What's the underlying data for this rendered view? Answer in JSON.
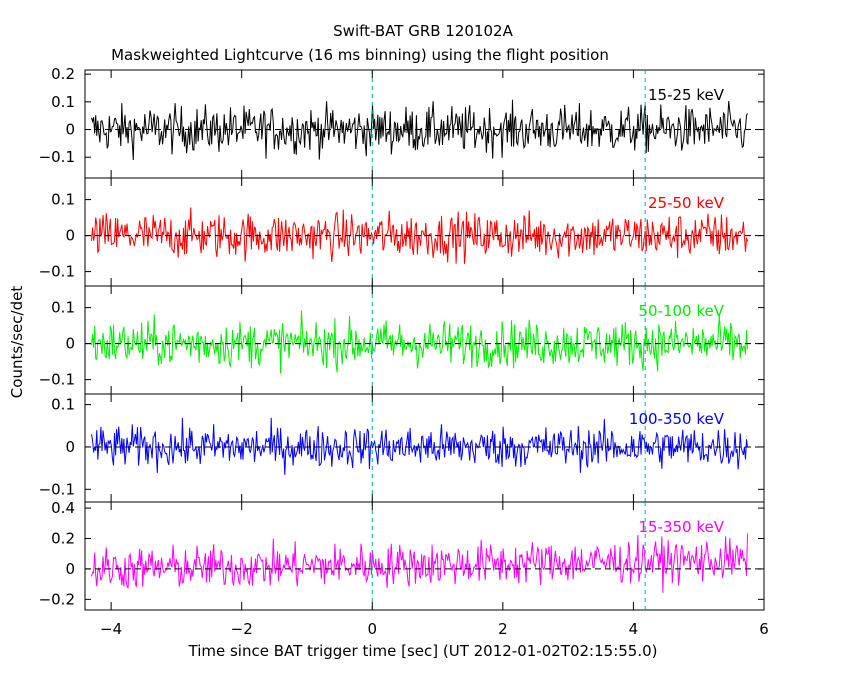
{
  "chart_data": {
    "type": "line",
    "title": "Swift-BAT GRB 120102A",
    "subtitle": "Maskweighted Lightcurve (16 ms binning) using the flight position",
    "xlabel": "Time since BAT trigger time [sec] (UT 2012-01-02T02:15:55.0)",
    "ylabel": "Counts/sec/det",
    "xlim": [
      -4.4,
      6.0
    ],
    "x_ticks": [
      "-4",
      "-2",
      "0",
      "2",
      "4",
      "6"
    ],
    "data_range": [
      -4.3,
      5.75
    ],
    "bin_width": 0.016,
    "vertical_markers": [
      0,
      4.18
    ],
    "grid": false,
    "panels": [
      {
        "name": "15-25 keV",
        "color": "#000000",
        "ylim": [
          -0.175,
          0.215
        ],
        "yticks": [
          -0.1,
          0,
          0.1,
          0.2
        ],
        "ytick_labels": [
          "−0.1",
          "0",
          "0.1",
          "0.2"
        ],
        "amplitude": 0.06,
        "trend": 0.0
      },
      {
        "name": "25-50 keV",
        "color": "#ff0000",
        "ylim": [
          -0.14,
          0.16
        ],
        "yticks": [
          -0.1,
          0,
          0.1
        ],
        "ytick_labels": [
          "−0.1",
          "0",
          "0.1"
        ],
        "amplitude": 0.045,
        "trend": 0.0
      },
      {
        "name": "50-100 keV",
        "color": "#00ee00",
        "ylim": [
          -0.14,
          0.16
        ],
        "yticks": [
          -0.1,
          0,
          0.1
        ],
        "ytick_labels": [
          "−0.1",
          "0",
          "0.1"
        ],
        "amplitude": 0.045,
        "trend": 0.0
      },
      {
        "name": "100-350 keV",
        "color": "#0000ff",
        "ylim": [
          -0.13,
          0.125
        ],
        "yticks": [
          -0.1,
          0,
          0.1
        ],
        "ytick_labels": [
          "−0.1",
          "0",
          "0.1"
        ],
        "amplitude": 0.035,
        "trend": 0.0
      },
      {
        "name": "15-350 keV",
        "color": "#ff00ff",
        "ylim": [
          -0.27,
          0.44
        ],
        "yticks": [
          -0.2,
          0,
          0.2,
          0.4
        ],
        "ytick_labels": [
          "−0.2",
          "0",
          "0.2",
          "0.4"
        ],
        "amplitude": 0.1,
        "trend": 0.06
      }
    ]
  }
}
